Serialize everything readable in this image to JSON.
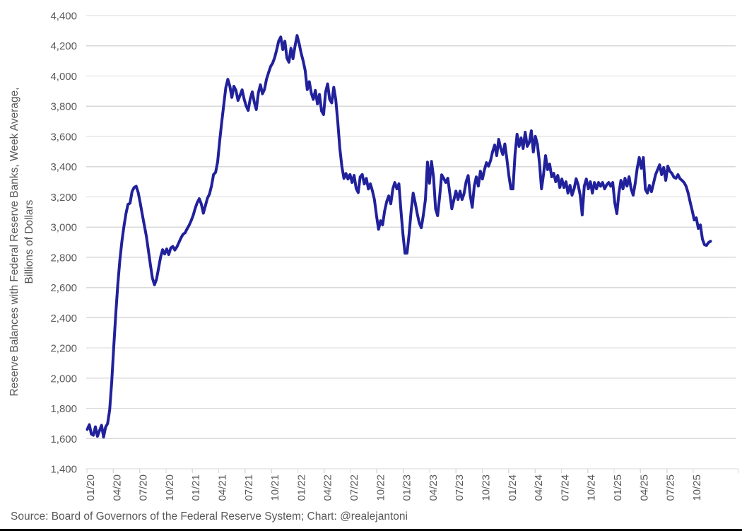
{
  "chart": {
    "y_axis_title_line1": "Reserve Balances with Federal Reserve Banks, Week Average,",
    "y_axis_title_line2": "Billions of Dollars",
    "source_line": "Source: Board of Governors of the Federal Reserve System; Chart: @realejantoni"
  },
  "chart_data": {
    "type": "line",
    "series_name": "Reserve Balances with Federal Reserve Banks, Week Average",
    "units": "Billions of Dollars",
    "frequency": "weekly",
    "x_start": "01/20",
    "x_end": "11/25",
    "title": "",
    "xlabel": "",
    "ylabel": "Reserve Balances with Federal Reserve Banks, Week Average, Billions of Dollars",
    "ylim": [
      1400,
      4400
    ],
    "y_tick_step": 200,
    "grid": "horizontal",
    "legend": "none",
    "line_color": "#21219C",
    "gridline_color": "#D9D9D9",
    "tick_label_color": "#595959",
    "source": "Board of Governors of the Federal Reserve System",
    "chart_credit": "@realejantoni",
    "y_tick_labels": [
      "1,400",
      "1,600",
      "1,800",
      "2,000",
      "2,200",
      "2,400",
      "2,600",
      "2,800",
      "3,000",
      "3,200",
      "3,400",
      "3,600",
      "3,800",
      "4,000",
      "4,200",
      "4,400"
    ],
    "x_tick_labels": [
      "01/20",
      "04/20",
      "07/20",
      "10/20",
      "01/21",
      "04/21",
      "07/21",
      "10/21",
      "01/22",
      "04/22",
      "07/22",
      "10/22",
      "01/23",
      "04/23",
      "07/23",
      "10/23",
      "01/24",
      "04/24",
      "07/24",
      "10/24",
      "01/25",
      "04/25",
      "07/25",
      "10/25"
    ],
    "values": [
      1660,
      1692,
      1630,
      1622,
      1678,
      1615,
      1652,
      1688,
      1610,
      1675,
      1700,
      1790,
      1975,
      2210,
      2430,
      2620,
      2780,
      2905,
      3005,
      3090,
      3150,
      3158,
      3235,
      3262,
      3270,
      3228,
      3160,
      3085,
      3012,
      2940,
      2845,
      2748,
      2662,
      2618,
      2655,
      2728,
      2802,
      2850,
      2822,
      2855,
      2818,
      2862,
      2872,
      2848,
      2868,
      2898,
      2928,
      2952,
      2962,
      2988,
      3012,
      3042,
      3078,
      3125,
      3162,
      3188,
      3152,
      3092,
      3142,
      3192,
      3218,
      3272,
      3348,
      3362,
      3432,
      3572,
      3692,
      3808,
      3922,
      3978,
      3932,
      3858,
      3932,
      3905,
      3838,
      3872,
      3908,
      3848,
      3802,
      3772,
      3848,
      3895,
      3825,
      3778,
      3888,
      3942,
      3882,
      3912,
      3978,
      4022,
      4062,
      4085,
      4122,
      4175,
      4232,
      4258,
      4175,
      4230,
      4119,
      4091,
      4184,
      4114,
      4198,
      4268,
      4215,
      4152,
      4100,
      4035,
      3910,
      3962,
      3885,
      3845,
      3905,
      3815,
      3878,
      3768,
      3745,
      3892,
      3948,
      3845,
      3822,
      3925,
      3845,
      3695,
      3520,
      3400,
      3322,
      3355,
      3318,
      3348,
      3295,
      3342,
      3255,
      3228,
      3332,
      3348,
      3285,
      3322,
      3252,
      3286,
      3240,
      3180,
      3075,
      2985,
      3042,
      3014,
      3107,
      3168,
      3206,
      3154,
      3253,
      3295,
      3253,
      3286,
      3107,
      2949,
      2827,
      2828,
      2952,
      3107,
      3225,
      3160,
      3089,
      3028,
      2995,
      3080,
      3182,
      3430,
      3290,
      3435,
      3330,
      3120,
      3075,
      3200,
      3346,
      3322,
      3295,
      3323,
      3220,
      3121,
      3180,
      3238,
      3182,
      3238,
      3182,
      3222,
      3300,
      3341,
      3210,
      3131,
      3270,
      3332,
      3271,
      3370,
      3318,
      3380,
      3426,
      3403,
      3440,
      3500,
      3543,
      3473,
      3581,
      3520,
      3480,
      3550,
      3450,
      3340,
      3253,
      3253,
      3480,
      3614,
      3534,
      3590,
      3520,
      3628,
      3534,
      3560,
      3637,
      3497,
      3600,
      3547,
      3426,
      3253,
      3347,
      3473,
      3380,
      3417,
      3333,
      3356,
      3300,
      3342,
      3262,
      3318,
      3262,
      3300,
      3225,
      3276,
      3211,
      3253,
      3320,
      3280,
      3211,
      3080,
      3271,
      3318,
      3253,
      3300,
      3225,
      3295,
      3253,
      3295,
      3270,
      3295,
      3253,
      3280,
      3295,
      3270,
      3295,
      3160,
      3089,
      3225,
      3309,
      3253,
      3323,
      3271,
      3333,
      3253,
      3211,
      3290,
      3389,
      3460,
      3389,
      3460,
      3249,
      3225,
      3276,
      3234,
      3290,
      3347,
      3380,
      3412,
      3347,
      3394,
      3309,
      3403,
      3370,
      3356,
      3330,
      3323,
      3347,
      3320,
      3309,
      3295,
      3270,
      3225,
      3164,
      3108,
      3047,
      3061,
      2991,
      3014,
      2920,
      2883,
      2878,
      2897,
      2906
    ]
  }
}
